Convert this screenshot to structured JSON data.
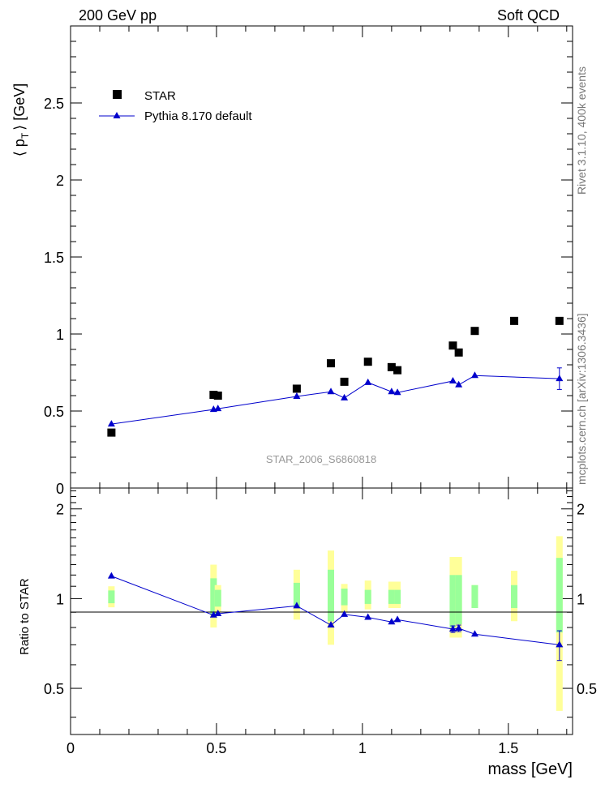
{
  "header": {
    "left": "200 GeV pp",
    "right": "Soft QCD"
  },
  "side_labels": {
    "rivet": "Rivet 3.1.10,  400k events",
    "mcplots": "mcplots.cern.ch [arXiv:1306.3436]"
  },
  "watermark": "STAR_2006_S6860818",
  "colors": {
    "data": "#000000",
    "mc": "#0000cc",
    "band_stat": "#99ff99",
    "band_total": "#ffff99"
  },
  "chart_data": {
    "type": "scatter",
    "xlabel": "mass [GeV]",
    "xlim": [
      0,
      1.72
    ],
    "x_ticks": [
      "0",
      "0.5",
      "1",
      "1.5"
    ],
    "main": {
      "ylabel_prefix": "⟨ p",
      "ylabel_sub": "T",
      "ylabel_suffix": "⟩ [GeV]",
      "ylim": [
        0,
        3.0
      ],
      "y_ticks": [
        "0",
        "0.5",
        "1",
        "1.5",
        "2",
        "2.5"
      ],
      "legend": [
        {
          "name": "STAR",
          "marker": "square"
        },
        {
          "name": "Pythia 8.170 default",
          "marker": "triangle"
        }
      ],
      "series": [
        {
          "name": "STAR",
          "x": [
            0.14,
            0.49,
            0.505,
            0.775,
            0.892,
            0.938,
            1.019,
            1.1,
            1.12,
            1.31,
            1.33,
            1.385,
            1.52,
            1.675
          ],
          "y": [
            0.36,
            0.605,
            0.6,
            0.645,
            0.81,
            0.69,
            0.82,
            0.785,
            0.765,
            0.925,
            0.88,
            1.02,
            1.085,
            1.085
          ]
        },
        {
          "name": "Pythia 8.170 default",
          "x": [
            0.14,
            0.49,
            0.505,
            0.775,
            0.892,
            0.938,
            1.019,
            1.1,
            1.12,
            1.31,
            1.33,
            1.385,
            1.675
          ],
          "y": [
            0.415,
            0.51,
            0.515,
            0.595,
            0.625,
            0.585,
            0.685,
            0.625,
            0.62,
            0.695,
            0.67,
            0.73,
            0.71
          ],
          "yerr": [
            0,
            0,
            0,
            0,
            0,
            0,
            0,
            0,
            0,
            0,
            0,
            0,
            0.07
          ]
        }
      ]
    },
    "ratio": {
      "ylabel": "Ratio to STAR",
      "ylim": [
        0.35,
        2.35
      ],
      "y_ticks": [
        "0.5",
        "1",
        "2"
      ],
      "y_tick_values": [
        0.5,
        1,
        2
      ],
      "bands": [
        {
          "x": 0.14,
          "stat": [
            0.965,
            1.065
          ],
          "total": [
            0.935,
            1.1
          ]
        },
        {
          "x": 0.49,
          "stat": [
            0.88,
            1.17
          ],
          "total": [
            0.8,
            1.3
          ]
        },
        {
          "x": 0.505,
          "stat": [
            0.94,
            1.07
          ],
          "total": [
            0.9,
            1.11
          ]
        },
        {
          "x": 0.775,
          "stat": [
            0.93,
            1.13
          ],
          "total": [
            0.85,
            1.25
          ]
        },
        {
          "x": 0.892,
          "stat": [
            0.84,
            1.25
          ],
          "total": [
            0.7,
            1.45
          ]
        },
        {
          "x": 0.938,
          "stat": [
            0.95,
            1.08
          ],
          "total": [
            0.9,
            1.12
          ]
        },
        {
          "x": 1.019,
          "stat": [
            0.96,
            1.07
          ],
          "total": [
            0.92,
            1.15
          ]
        },
        {
          "x": 1.1,
          "stat": [
            0.96,
            1.07
          ],
          "total": [
            0.93,
            1.14
          ]
        },
        {
          "x": 1.12,
          "stat": [
            0.96,
            1.07
          ],
          "total": [
            0.93,
            1.14
          ]
        },
        {
          "x": 1.31,
          "stat": [
            0.8,
            1.2
          ],
          "total": [
            0.74,
            1.38
          ]
        },
        {
          "x": 1.33,
          "stat": [
            0.82,
            1.2
          ],
          "total": [
            0.74,
            1.38
          ]
        },
        {
          "x": 1.385,
          "stat": [
            0.93,
            1.11
          ],
          "total": [
            0.93,
            1.11
          ]
        },
        {
          "x": 1.52,
          "stat": [
            0.93,
            1.11
          ],
          "total": [
            0.84,
            1.24
          ]
        },
        {
          "x": 1.675,
          "stat": [
            0.77,
            1.37
          ],
          "total": [
            0.42,
            1.62
          ]
        }
      ],
      "series": [
        {
          "name": "Pythia 8.170 default",
          "x": [
            0.14,
            0.49,
            0.505,
            0.775,
            0.892,
            0.938,
            1.019,
            1.1,
            1.12,
            1.31,
            1.33,
            1.385,
            1.675
          ],
          "y": [
            1.19,
            0.88,
            0.89,
            0.945,
            0.815,
            0.885,
            0.865,
            0.835,
            0.85,
            0.79,
            0.795,
            0.76,
            0.7
          ],
          "yerr": [
            0,
            0,
            0,
            0,
            0,
            0,
            0,
            0,
            0,
            0.02,
            0.02,
            0,
            0.08
          ]
        }
      ]
    }
  }
}
